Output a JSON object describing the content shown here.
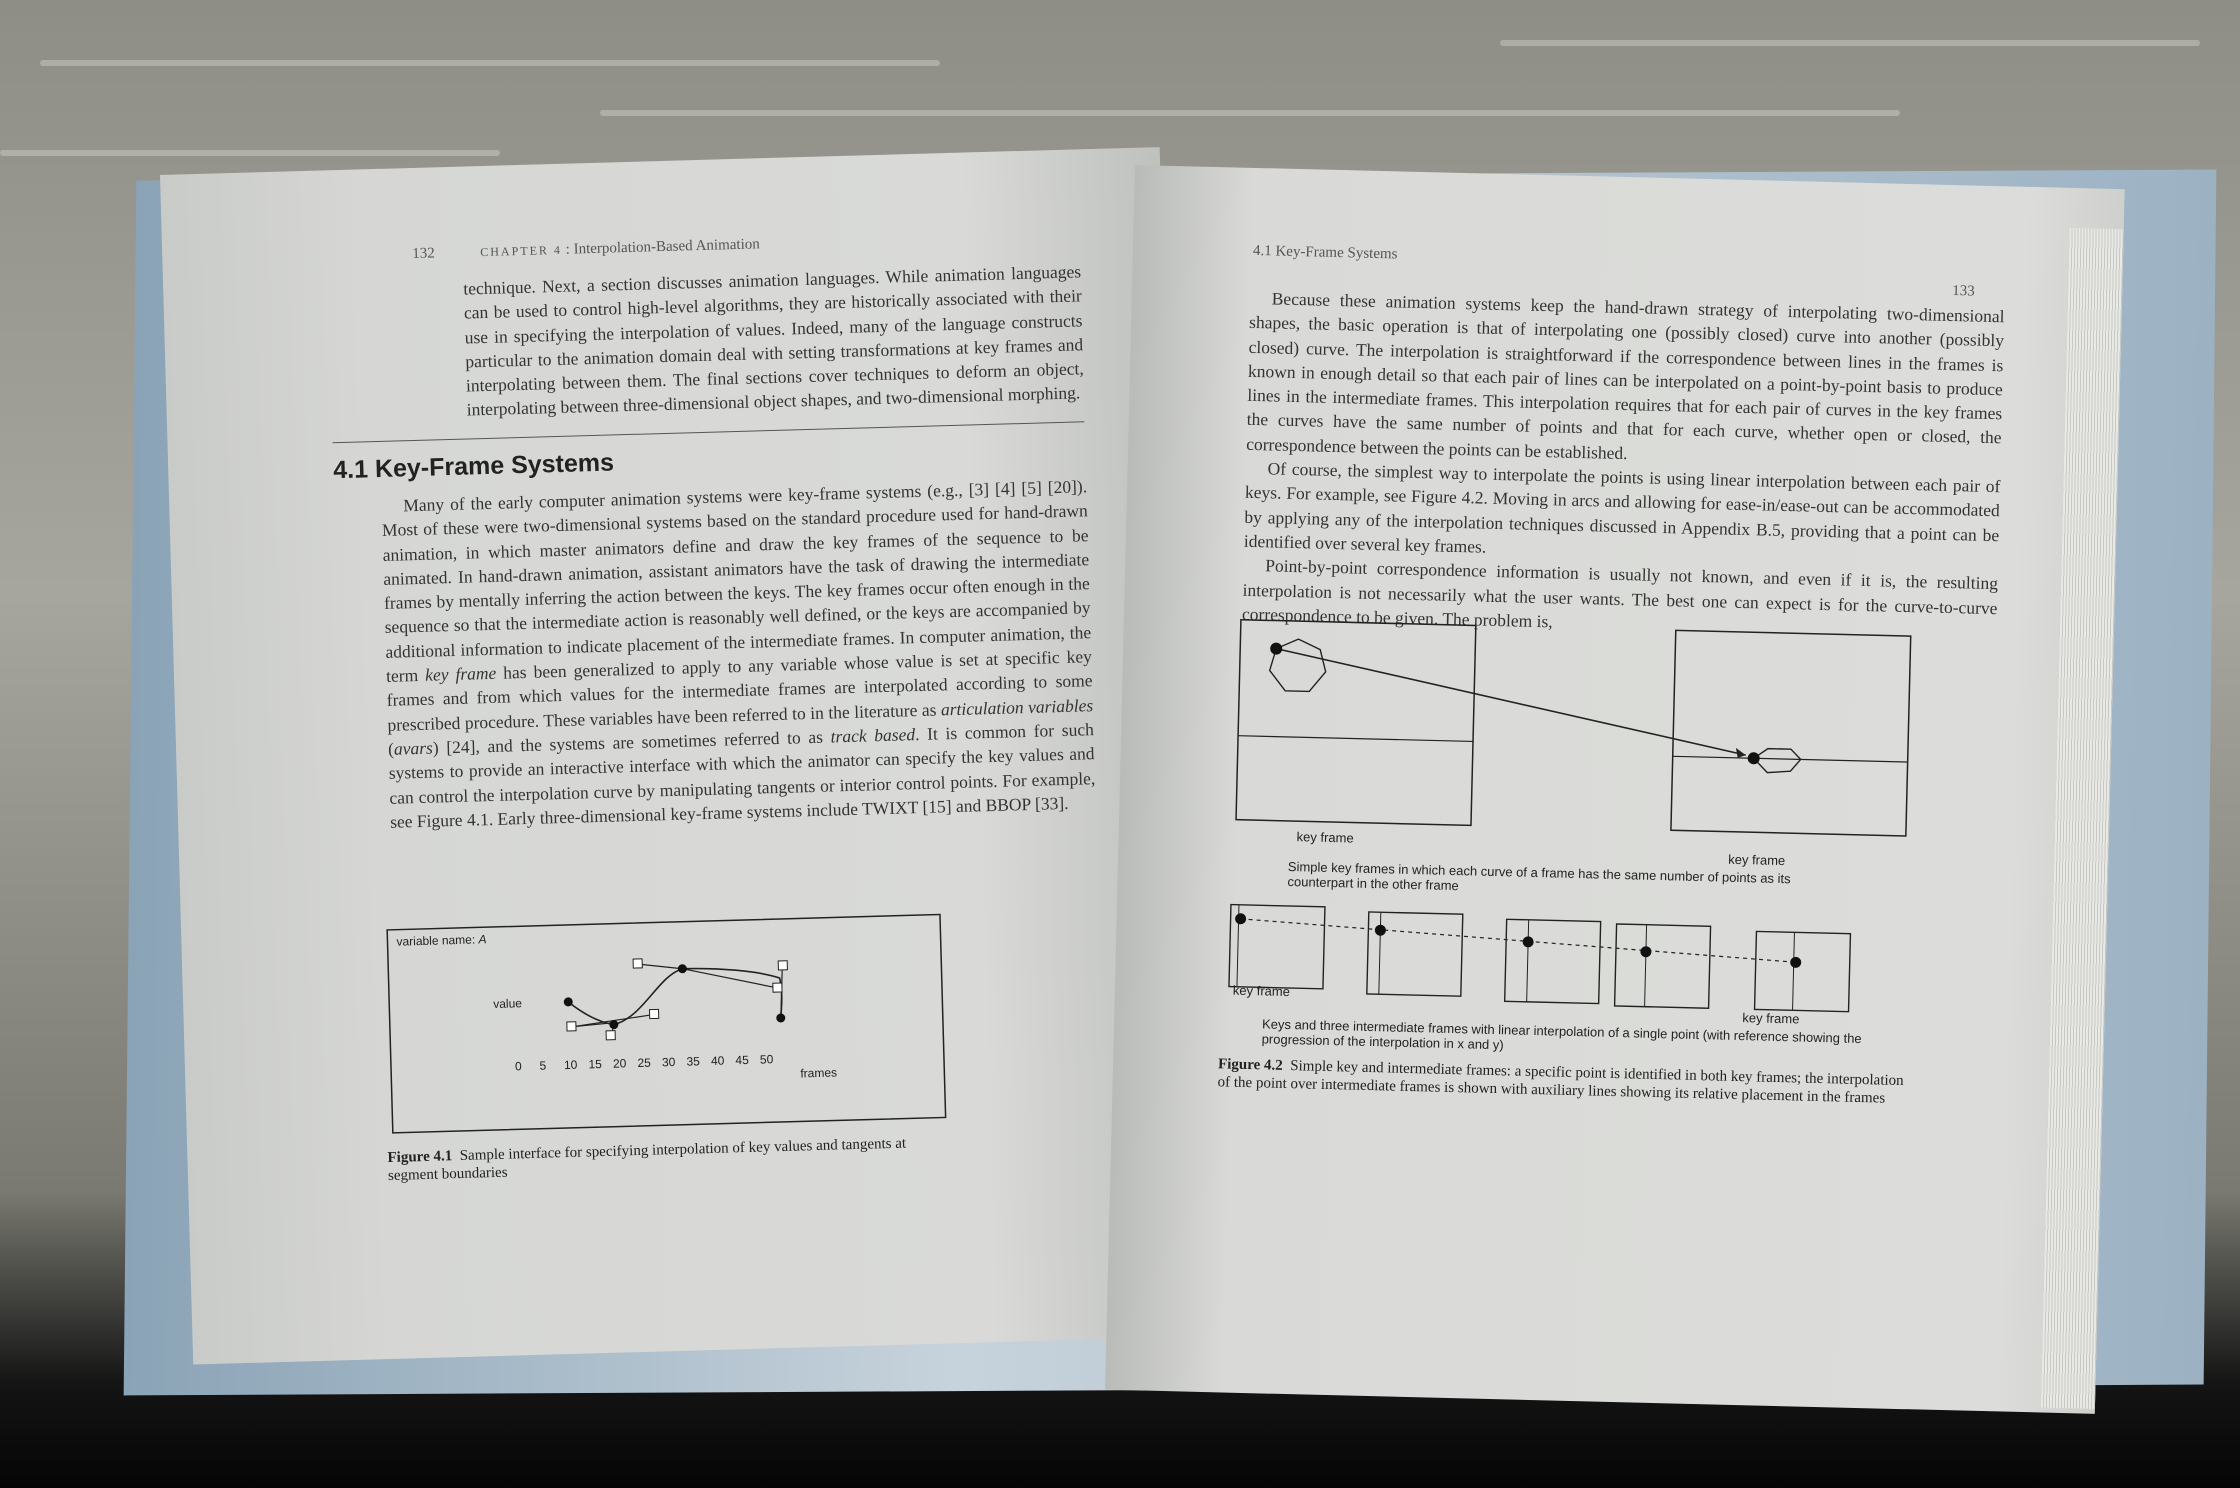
{
  "left_page": {
    "page_number": "132",
    "running_head_chapter": "CHAPTER 4",
    "running_head_title": "Interpolation-Based Animation",
    "intro_paragraph": "technique. Next, a section discusses animation languages. While animation languages can be used to control high-level algorithms, they are historically associated with their use in specifying the interpolation of values. Indeed, many of the language constructs particular to the animation domain deal with setting transformations at key frames and interpolating between them. The final sections cover techniques to deform an object, interpolating between three-dimensional object shapes, and two-dimensional morphing.",
    "section_heading": "4.1 Key-Frame Systems",
    "section_paragraph_parts": [
      "Many of the early computer animation systems were key-frame systems (e.g., [3] [4] [5] [20]). Most of these were two-dimensional systems based on the standard procedure used for hand-drawn animation, in which master animators define and draw the key frames of the sequence to be animated. In hand-drawn animation, assistant animators have the task of drawing the intermediate frames by mentally inferring the action between the keys. The key frames occur often enough in the sequence so that the intermediate action is reasonably well defined, or the keys are accompanied by additional information to indicate placement of the intermediate frames. In computer animation, the term ",
      "key frame",
      " has been generalized to apply to any variable whose value is set at specific key frames and from which values for the intermediate frames are interpolated according to some prescribed procedure. These variables have been referred to in the literature as ",
      "articulation variables",
      " (",
      "avars",
      ") [24], and the systems are sometimes referred to as ",
      "track based",
      ". It is common for such systems to provide an interactive interface with which the animator can specify the key values and can control the interpolation curve by manipulating tangents or interior control points. For example, see Figure 4.1. Early three-dimensional key-frame systems include TWIXT [15] and BBOP [33]."
    ],
    "figure": {
      "variable_label": "variable name: ",
      "variable_name": "A",
      "y_label": "value",
      "x_label": "frames",
      "x_ticks": [
        "0",
        "5",
        "10",
        "15",
        "20",
        "25",
        "30",
        "35",
        "40",
        "45",
        "50"
      ],
      "caption_label": "Figure 4.1",
      "caption_text": "Sample interface for specifying interpolation of key values and tangents at segment boundaries"
    }
  },
  "right_page": {
    "page_number": "133",
    "running_head": "4.1 Key-Frame Systems",
    "paragraphs": [
      "Because these animation systems keep the hand-drawn strategy of interpolating two-dimensional shapes, the basic operation is that of interpolating one (possibly closed) curve into another (possibly closed) curve. The interpolation is straightforward if the correspondence between lines in the frames is known in enough detail so that each pair of lines can be interpolated on a point-by-point basis to produce lines in the intermediate frames. This interpolation requires that for each pair of curves in the key frames the curves have the same number of points and that for each curve, whether open or closed, the correspondence between the points can be established.",
      "Of course, the simplest way to interpolate the points is using linear interpolation between each pair of keys. For example, see Figure 4.2. Moving in arcs and allowing for ease-in/ease-out can be accommodated by applying any of the interpolation techniques discussed in Appendix B.5, providing that a point can be identified over several key frames.",
      "Point-by-point correspondence information is usually not known, and even if it is, the resulting interpolation is not necessarily what the user wants. The best one can expect is for the curve-to-curve correspondence to be given. The problem is,"
    ],
    "figure": {
      "key_frame_label_1": "key frame",
      "key_frame_label_2": "key frame",
      "subcaption_top": "Simple key frames in which each curve of a frame has the same number of points as its counterpart in the other frame",
      "key_frame_label_3": "key frame",
      "key_frame_label_4": "key frame",
      "subcaption_bottom": "Keys and three intermediate frames with linear interpolation of a single point (with reference showing the progression of the interpolation in x and y)",
      "caption_label": "Figure 4.2",
      "caption_text": "Simple key and intermediate frames: a specific point is identified in both key frames; the interpolation of the point over intermediate frames is shown with auxiliary lines showing its relative placement in the frames"
    }
  }
}
